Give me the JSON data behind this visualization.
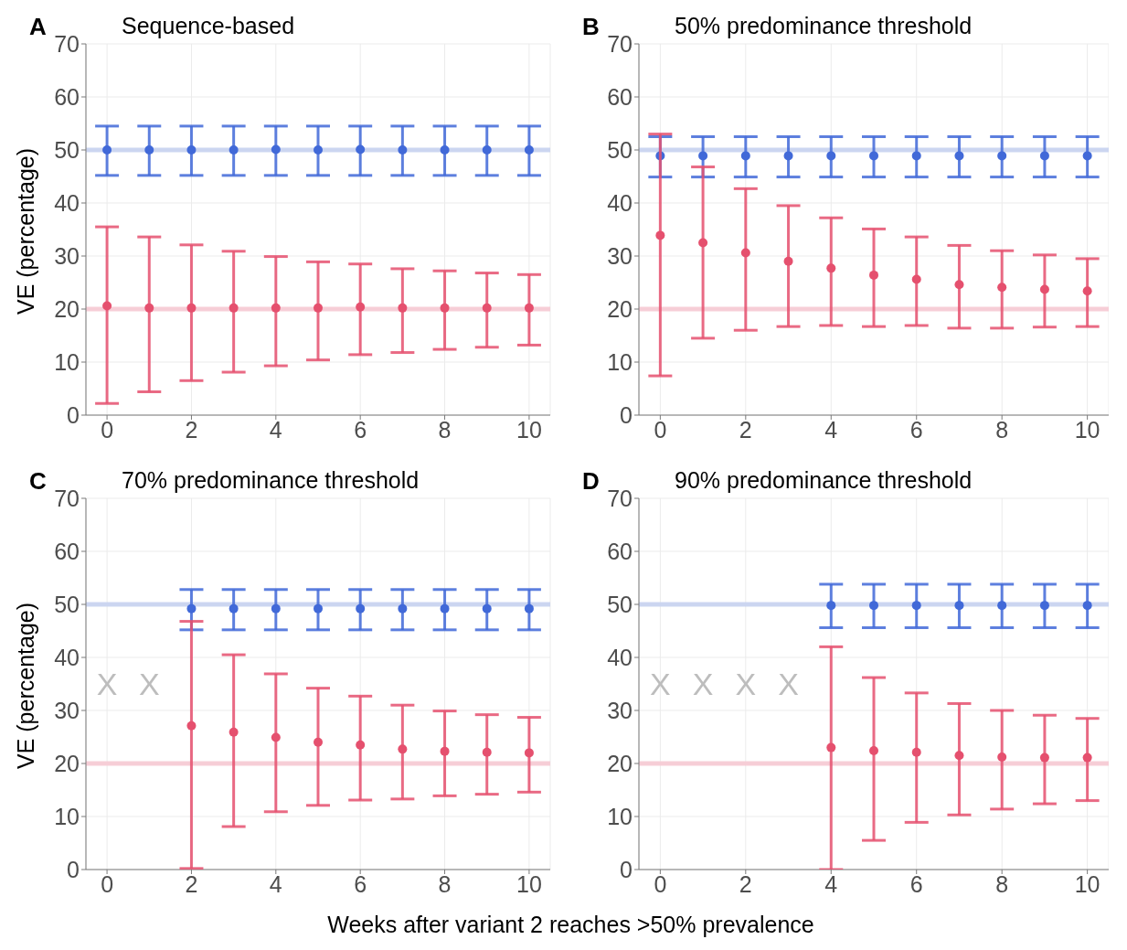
{
  "chart_data": [
    {
      "type": "scatter",
      "title": "Sequence-based",
      "ylabel": "VE (percentage)",
      "annotations": [
        "A"
      ],
      "x": [
        0,
        1,
        2,
        3,
        4,
        5,
        6,
        7,
        8,
        9,
        10
      ],
      "xlim": [
        -0.5,
        10.5
      ],
      "xticks": [
        0,
        2,
        4,
        6,
        8,
        10
      ],
      "ylim": [
        0,
        70
      ],
      "yticks": [
        0,
        10,
        20,
        30,
        40,
        50,
        60,
        70
      ],
      "grid": true,
      "marker": "circle",
      "ref_lines": [
        {
          "axis": "y",
          "value": 50,
          "color": "#c6d2f0"
        },
        {
          "axis": "y",
          "value": 20,
          "color": "#f6c9d3"
        }
      ],
      "series": [
        {
          "color": "#4169d8",
          "values": [
            50,
            50,
            50,
            50,
            50.1,
            50,
            50.1,
            50,
            50,
            50,
            50
          ],
          "errors": [
            [
              45.2,
              54.5
            ],
            [
              45.2,
              54.5
            ],
            [
              45.2,
              54.5
            ],
            [
              45.2,
              54.5
            ],
            [
              45.2,
              54.5
            ],
            [
              45.2,
              54.5
            ],
            [
              45.2,
              54.5
            ],
            [
              45.2,
              54.5
            ],
            [
              45.2,
              54.5
            ],
            [
              45.2,
              54.5
            ],
            [
              45.2,
              54.5
            ]
          ]
        },
        {
          "color": "#e5506e",
          "values": [
            20.6,
            20.2,
            20.2,
            20.2,
            20.2,
            20.2,
            20.4,
            20.2,
            20.2,
            20.2,
            20.2
          ],
          "errors": [
            [
              2.2,
              35.5
            ],
            [
              4.4,
              33.6
            ],
            [
              6.5,
              32.1
            ],
            [
              8.1,
              30.9
            ],
            [
              9.3,
              29.9
            ],
            [
              10.4,
              28.9
            ],
            [
              11.4,
              28.5
            ],
            [
              11.8,
              27.6
            ],
            [
              12.4,
              27.2
            ],
            [
              12.8,
              26.8
            ],
            [
              13.2,
              26.5
            ]
          ]
        }
      ]
    },
    {
      "type": "scatter",
      "title": "50% predominance threshold",
      "annotations": [
        "B"
      ],
      "x": [
        0,
        1,
        2,
        3,
        4,
        5,
        6,
        7,
        8,
        9,
        10
      ],
      "xlim": [
        -0.5,
        10.5
      ],
      "xticks": [
        0,
        2,
        4,
        6,
        8,
        10
      ],
      "ylim": [
        0,
        70
      ],
      "yticks": [
        0,
        10,
        20,
        30,
        40,
        50,
        60,
        70
      ],
      "grid": true,
      "marker": "circle",
      "ref_lines": [
        {
          "axis": "y",
          "value": 50,
          "color": "#c6d2f0"
        },
        {
          "axis": "y",
          "value": 20,
          "color": "#f6c9d3"
        }
      ],
      "series": [
        {
          "color": "#4169d8",
          "values": [
            48.9,
            48.9,
            48.9,
            48.9,
            48.9,
            48.9,
            48.9,
            48.9,
            48.9,
            48.9,
            48.9
          ],
          "errors": [
            [
              44.9,
              52.5
            ],
            [
              44.9,
              52.5
            ],
            [
              44.9,
              52.5
            ],
            [
              44.9,
              52.5
            ],
            [
              44.9,
              52.5
            ],
            [
              44.9,
              52.5
            ],
            [
              44.9,
              52.5
            ],
            [
              44.9,
              52.5
            ],
            [
              44.9,
              52.5
            ],
            [
              44.9,
              52.5
            ],
            [
              44.9,
              52.5
            ]
          ]
        },
        {
          "color": "#e5506e",
          "values": [
            33.9,
            32.5,
            30.6,
            29,
            27.7,
            26.4,
            25.6,
            24.6,
            24.1,
            23.7,
            23.4
          ],
          "errors": [
            [
              7.4,
              53
            ],
            [
              14.5,
              46.8
            ],
            [
              16,
              42.7
            ],
            [
              16.7,
              39.5
            ],
            [
              16.9,
              37.2
            ],
            [
              16.7,
              35.1
            ],
            [
              16.9,
              33.6
            ],
            [
              16.4,
              32
            ],
            [
              16.4,
              31
            ],
            [
              16.6,
              30.2
            ],
            [
              16.7,
              29.5
            ]
          ]
        }
      ]
    },
    {
      "type": "scatter",
      "title": "70% predominance threshold",
      "ylabel": "VE (percentage)",
      "xlabel": "Weeks after variant 2 reaches >50% prevalence",
      "annotations": [
        "C",
        "X",
        "X"
      ],
      "xlim": [
        -0.5,
        10.5
      ],
      "xticks": [
        0,
        2,
        4,
        6,
        8,
        10
      ],
      "ylim": [
        0,
        70
      ],
      "yticks": [
        0,
        10,
        20,
        30,
        40,
        50,
        60,
        70
      ],
      "grid": true,
      "marker": "circle",
      "ref_lines": [
        {
          "axis": "y",
          "value": 50,
          "color": "#c6d2f0"
        },
        {
          "axis": "y",
          "value": 20,
          "color": "#f6c9d3"
        }
      ],
      "series": [
        {
          "color": "#4169d8",
          "x": [
            2,
            3,
            4,
            5,
            6,
            7,
            8,
            9,
            10
          ],
          "values": [
            49.2,
            49.2,
            49.2,
            49.2,
            49.2,
            49.2,
            49.2,
            49.2,
            49.2
          ],
          "errors": [
            [
              45.2,
              52.8
            ],
            [
              45.2,
              52.8
            ],
            [
              45.2,
              52.8
            ],
            [
              45.2,
              52.8
            ],
            [
              45.2,
              52.8
            ],
            [
              45.2,
              52.8
            ],
            [
              45.2,
              52.8
            ],
            [
              45.2,
              52.8
            ],
            [
              45.2,
              52.8
            ]
          ]
        },
        {
          "color": "#e5506e",
          "x": [
            2,
            3,
            4,
            5,
            6,
            7,
            8,
            9,
            10
          ],
          "values": [
            27.1,
            25.9,
            24.9,
            24,
            23.5,
            22.7,
            22.3,
            22.1,
            22
          ],
          "errors": [
            [
              0.2,
              46.8
            ],
            [
              8.1,
              40.5
            ],
            [
              10.9,
              36.9
            ],
            [
              12.1,
              34.2
            ],
            [
              13.1,
              32.7
            ],
            [
              13.3,
              31
            ],
            [
              13.9,
              29.9
            ],
            [
              14.2,
              29.2
            ],
            [
              14.6,
              28.7
            ]
          ]
        }
      ]
    },
    {
      "type": "scatter",
      "title": "90% predominance threshold",
      "annotations": [
        "D",
        "X",
        "X",
        "X",
        "X"
      ],
      "xlim": [
        -0.5,
        10.5
      ],
      "xticks": [
        0,
        2,
        4,
        6,
        8,
        10
      ],
      "ylim": [
        0,
        70
      ],
      "yticks": [
        0,
        10,
        20,
        30,
        40,
        50,
        60,
        70
      ],
      "grid": true,
      "marker": "circle",
      "ref_lines": [
        {
          "axis": "y",
          "value": 50,
          "color": "#c6d2f0"
        },
        {
          "axis": "y",
          "value": 20,
          "color": "#f6c9d3"
        }
      ],
      "series": [
        {
          "color": "#4169d8",
          "x": [
            4,
            5,
            6,
            7,
            8,
            9,
            10
          ],
          "values": [
            49.8,
            49.8,
            49.8,
            49.8,
            49.8,
            49.8,
            49.8
          ],
          "errors": [
            [
              45.6,
              53.8
            ],
            [
              45.6,
              53.8
            ],
            [
              45.6,
              53.8
            ],
            [
              45.6,
              53.8
            ],
            [
              45.6,
              53.8
            ],
            [
              45.6,
              53.8
            ],
            [
              45.6,
              53.8
            ]
          ]
        },
        {
          "color": "#e5506e",
          "x": [
            4,
            5,
            6,
            7,
            8,
            9,
            10
          ],
          "values": [
            23,
            22.4,
            22.1,
            21.5,
            21.2,
            21.1,
            21.1
          ],
          "errors": [
            [
              0,
              42
            ],
            [
              5.5,
              36.2
            ],
            [
              8.9,
              33.3
            ],
            [
              10.3,
              31.3
            ],
            [
              11.4,
              30
            ],
            [
              12.4,
              29.1
            ],
            [
              13,
              28.5
            ]
          ]
        }
      ]
    }
  ]
}
